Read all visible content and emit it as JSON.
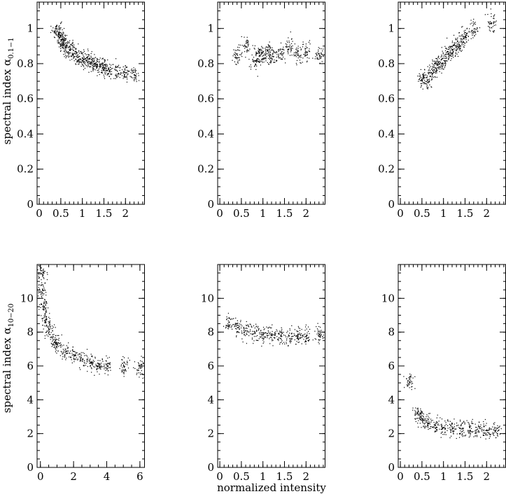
{
  "figure": {
    "xlabel": "normalized intensity",
    "ylabel_top": "spectral index α",
    "ylabel_top_sub": "0.1−1",
    "ylabel_bottom": "spectral index α",
    "ylabel_bottom_sub": "10−20"
  },
  "chart_data": [
    {
      "type": "scatter",
      "id": "top-left",
      "xlim": [
        -0.05,
        2.45
      ],
      "ylim": [
        0,
        1.15
      ],
      "xticks": [
        0,
        0.5,
        1,
        1.5,
        2
      ],
      "xtick_labels": [
        "0",
        "0.5",
        "1",
        "1.5",
        "2"
      ],
      "yticks": [
        0,
        0.2,
        0.4,
        0.6,
        0.8,
        1
      ],
      "ytick_labels": [
        "0",
        "0.2",
        "0.4",
        "0.6",
        "0.8",
        "1"
      ],
      "x_minor": 0.1,
      "y_minor": 0.05,
      "ylabel_row": "top",
      "points": [
        [
          0.4,
          1.0
        ],
        [
          0.45,
          0.97
        ],
        [
          0.5,
          0.94
        ],
        [
          0.55,
          0.92
        ],
        [
          0.6,
          0.9
        ],
        [
          0.7,
          0.88
        ],
        [
          0.8,
          0.86
        ],
        [
          0.9,
          0.84
        ],
        [
          1.0,
          0.83
        ],
        [
          1.1,
          0.82
        ],
        [
          1.2,
          0.81
        ],
        [
          1.3,
          0.8
        ],
        [
          1.4,
          0.79
        ],
        [
          1.5,
          0.78
        ],
        [
          1.6,
          0.77
        ],
        [
          1.8,
          0.76
        ],
        [
          2.0,
          0.75
        ],
        [
          2.2,
          0.74
        ]
      ]
    },
    {
      "type": "scatter",
      "id": "top-middle",
      "xlim": [
        -0.05,
        2.45
      ],
      "ylim": [
        0,
        1.15
      ],
      "xticks": [
        0,
        0.5,
        1,
        1.5,
        2
      ],
      "xtick_labels": [
        "0",
        "0.5",
        "1",
        "1.5",
        "2"
      ],
      "yticks": [
        0,
        0.2,
        0.4,
        0.6,
        0.8,
        1
      ],
      "ytick_labels": [
        "0",
        "0.2",
        "0.4",
        "0.6",
        "0.8",
        "1"
      ],
      "x_minor": 0.1,
      "y_minor": 0.05,
      "ylabel_row": "",
      "points": [
        [
          0.4,
          0.85
        ],
        [
          0.6,
          0.9
        ],
        [
          0.8,
          0.82
        ],
        [
          0.9,
          0.86
        ],
        [
          1.0,
          0.85
        ],
        [
          1.1,
          0.88
        ],
        [
          1.2,
          0.83
        ],
        [
          1.4,
          0.86
        ],
        [
          1.6,
          0.9
        ],
        [
          1.8,
          0.85
        ],
        [
          2.0,
          0.87
        ],
        [
          2.3,
          0.85
        ]
      ]
    },
    {
      "type": "scatter",
      "id": "top-right",
      "xlim": [
        -0.05,
        2.45
      ],
      "ylim": [
        0,
        1.15
      ],
      "xticks": [
        0,
        0.5,
        1,
        1.5,
        2
      ],
      "xtick_labels": [
        "0",
        "0.5",
        "1",
        "1.5",
        "2"
      ],
      "yticks": [
        0,
        0.2,
        0.4,
        0.6,
        0.8,
        1
      ],
      "ytick_labels": [
        "0",
        "0.2",
        "0.4",
        "0.6",
        "0.8",
        "1"
      ],
      "x_minor": 0.1,
      "y_minor": 0.05,
      "ylabel_row": "",
      "points": [
        [
          0.5,
          0.72
        ],
        [
          0.6,
          0.7
        ],
        [
          0.7,
          0.75
        ],
        [
          0.8,
          0.78
        ],
        [
          0.9,
          0.8
        ],
        [
          1.0,
          0.82
        ],
        [
          1.1,
          0.86
        ],
        [
          1.2,
          0.88
        ],
        [
          1.3,
          0.9
        ],
        [
          1.4,
          0.93
        ],
        [
          1.5,
          0.96
        ],
        [
          1.7,
          1.0
        ],
        [
          2.1,
          1.03
        ]
      ]
    },
    {
      "type": "scatter",
      "id": "bottom-left",
      "xlim": [
        -0.2,
        6.3
      ],
      "ylim": [
        0,
        12
      ],
      "xticks": [
        0,
        2,
        4,
        6
      ],
      "xtick_labels": [
        "0",
        "2",
        "4",
        "6"
      ],
      "yticks": [
        0,
        2,
        4,
        6,
        8,
        10
      ],
      "ytick_labels": [
        "0",
        "2",
        "4",
        "6",
        "8",
        "10"
      ],
      "x_minor": 0.5,
      "y_minor": 0.5,
      "ylabel_row": "bottom",
      "points": [
        [
          0.05,
          11.5
        ],
        [
          0.1,
          10.5
        ],
        [
          0.2,
          9.5
        ],
        [
          0.3,
          8.8
        ],
        [
          0.5,
          8.2
        ],
        [
          0.8,
          7.6
        ],
        [
          1.0,
          7.3
        ],
        [
          1.5,
          6.9
        ],
        [
          2.0,
          6.6
        ],
        [
          2.5,
          6.4
        ],
        [
          3.0,
          6.2
        ],
        [
          3.5,
          6.1
        ],
        [
          4.0,
          6.0
        ],
        [
          5.0,
          6.0
        ],
        [
          6.0,
          5.9
        ]
      ]
    },
    {
      "type": "scatter",
      "id": "bottom-middle",
      "xlim": [
        -0.05,
        2.45
      ],
      "ylim": [
        0,
        12
      ],
      "xticks": [
        0,
        0.5,
        1,
        1.5,
        2
      ],
      "xtick_labels": [
        "0",
        "0.5",
        "1",
        "1.5",
        "2"
      ],
      "yticks": [
        0,
        2,
        4,
        6,
        8,
        10
      ],
      "ytick_labels": [
        "0",
        "2",
        "4",
        "6",
        "8",
        "10"
      ],
      "x_minor": 0.1,
      "y_minor": 0.5,
      "ylabel_row": "",
      "points": [
        [
          0.2,
          8.6
        ],
        [
          0.4,
          8.3
        ],
        [
          0.6,
          8.1
        ],
        [
          0.8,
          8.0
        ],
        [
          1.0,
          7.9
        ],
        [
          1.2,
          7.9
        ],
        [
          1.4,
          7.8
        ],
        [
          1.6,
          7.8
        ],
        [
          1.8,
          7.8
        ],
        [
          2.0,
          7.8
        ],
        [
          2.3,
          7.9
        ]
      ]
    },
    {
      "type": "scatter",
      "id": "bottom-right",
      "xlim": [
        -0.05,
        2.45
      ],
      "ylim": [
        0,
        12
      ],
      "xticks": [
        0,
        0.5,
        1,
        1.5,
        2
      ],
      "xtick_labels": [
        "0",
        "0.5",
        "1",
        "1.5",
        "2"
      ],
      "yticks": [
        0,
        2,
        4,
        6,
        8,
        10
      ],
      "ytick_labels": [
        "0",
        "2",
        "4",
        "6",
        "8",
        "10"
      ],
      "x_minor": 0.1,
      "y_minor": 0.5,
      "ylabel_row": "",
      "points": [
        [
          0.2,
          5.1
        ],
        [
          0.4,
          3.2
        ],
        [
          0.5,
          2.9
        ],
        [
          0.6,
          2.7
        ],
        [
          0.8,
          2.5
        ],
        [
          1.0,
          2.4
        ],
        [
          1.2,
          2.3
        ],
        [
          1.4,
          2.3
        ],
        [
          1.6,
          2.2
        ],
        [
          1.8,
          2.2
        ],
        [
          2.0,
          2.2
        ],
        [
          2.2,
          2.2
        ]
      ]
    }
  ]
}
